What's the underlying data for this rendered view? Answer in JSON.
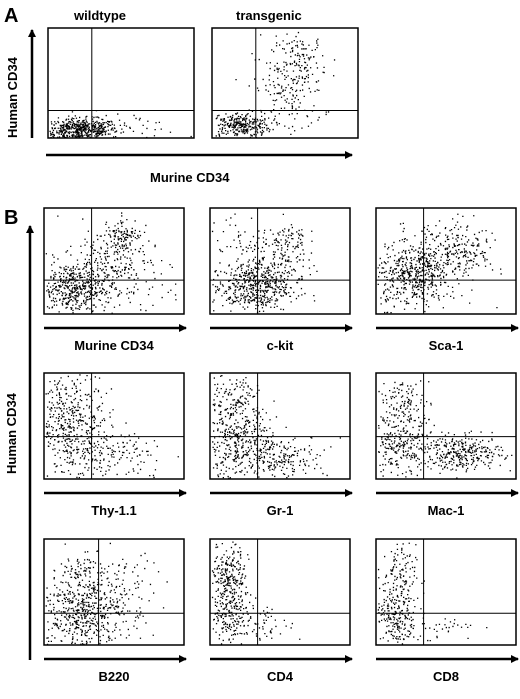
{
  "panel_a": {
    "letter": "A",
    "y_axis_label": "Human CD34",
    "x_axis_label": "Murine CD34",
    "plots": [
      {
        "title": "wildtype",
        "population": "wildtype"
      },
      {
        "title": "transgenic",
        "population": "transgenic"
      }
    ]
  },
  "panel_b": {
    "letter": "B",
    "y_axis_label": "Human CD34",
    "plots": [
      {
        "label": "Murine CD34",
        "population": "mcd34"
      },
      {
        "label": "c-kit",
        "population": "ckit"
      },
      {
        "label": "Sca-1",
        "population": "sca1"
      },
      {
        "label": "Thy-1.1",
        "population": "thy"
      },
      {
        "label": "Gr-1",
        "population": "gr1"
      },
      {
        "label": "Mac-1",
        "population": "mac1"
      },
      {
        "label": "B220",
        "population": "b220"
      },
      {
        "label": "CD4",
        "population": "cd4"
      },
      {
        "label": "CD8",
        "population": "cd8"
      }
    ]
  }
}
